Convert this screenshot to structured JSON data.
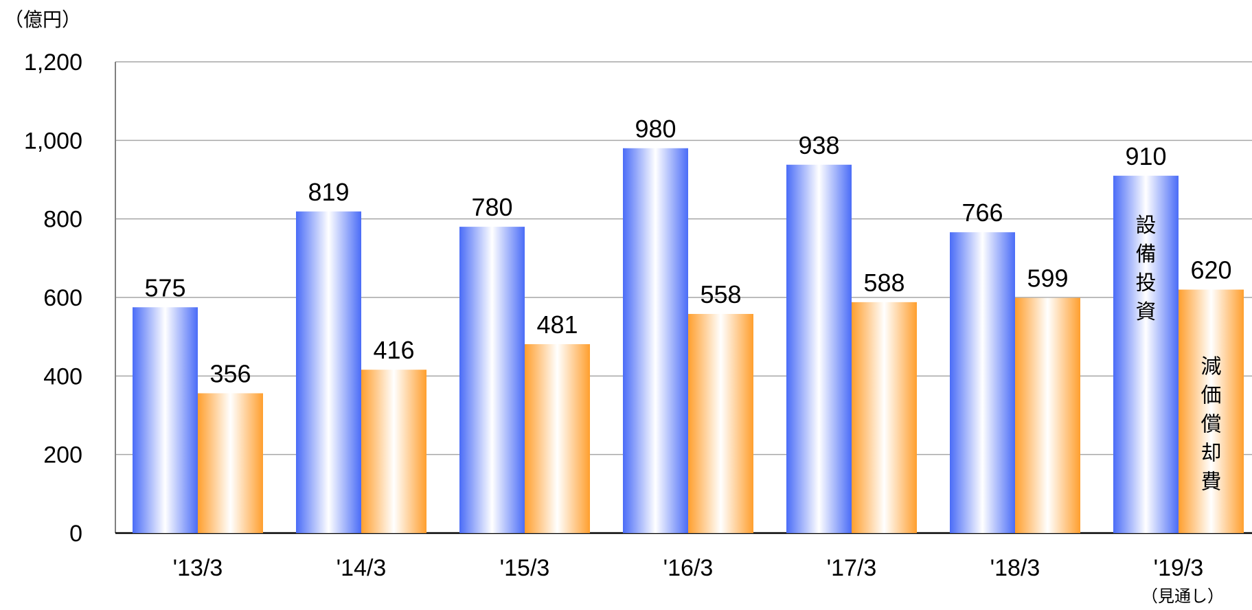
{
  "chart_data": {
    "type": "bar",
    "unit": "（億円）",
    "categories": [
      "'13/3",
      "'14/3",
      "'15/3",
      "'16/3",
      "'17/3",
      "'18/3",
      "'19/3"
    ],
    "category_note": "（見通し）",
    "series": [
      {
        "name": "設備投資",
        "values": [
          575,
          819,
          780,
          980,
          938,
          766,
          910
        ],
        "color": "#4d6ef5"
      },
      {
        "name": "減価償却費",
        "values": [
          356,
          416,
          481,
          558,
          588,
          599,
          620
        ],
        "color": "#ffa033"
      }
    ],
    "ylim": [
      0,
      1200
    ],
    "yticks": [
      "0",
      "200",
      "400",
      "600",
      "800",
      "1,000",
      "1,200"
    ],
    "grid": true,
    "legend": "inline-vertical-labels-in-last-bars"
  }
}
